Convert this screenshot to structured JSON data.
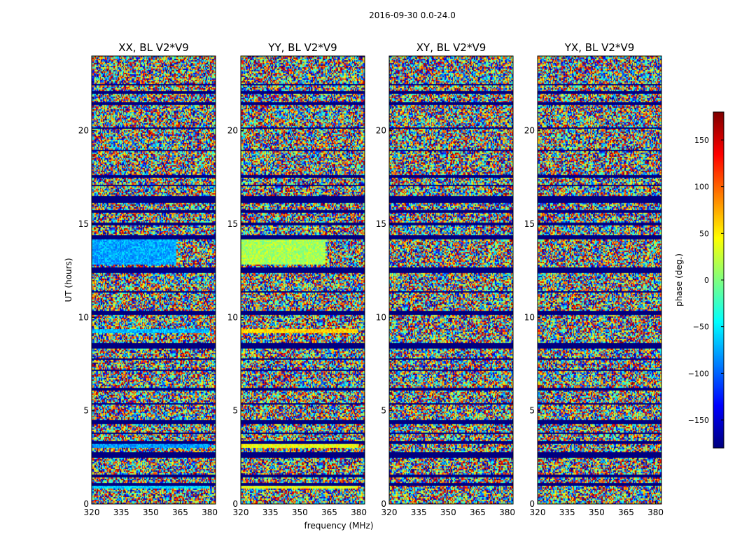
{
  "figure_title": "2016-09-30 0.0-24.0",
  "chart_data": {
    "type": "heatmap",
    "title": "2016-09-30 0.0-24.0",
    "xlabel": "frequency (MHz)",
    "ylabel": "UT (hours)",
    "xlim": [
      320,
      383
    ],
    "ylim": [
      0,
      24
    ],
    "xticks": [
      320,
      335,
      350,
      365,
      380
    ],
    "yticks": [
      0,
      5,
      10,
      15,
      20
    ],
    "panels": [
      {
        "title": "XX, BL V2*V9",
        "pol": "XX"
      },
      {
        "title": "YY, BL V2*V9",
        "pol": "YY"
      },
      {
        "title": "XY, BL V2*V9",
        "pol": "XY"
      },
      {
        "title": "YX, BL V2*V9",
        "pol": "YX"
      }
    ],
    "colorbar": {
      "label": "phase (deg.)",
      "colormap": "jet",
      "range": [
        -180,
        180
      ],
      "ticks": [
        -150,
        -100,
        -50,
        0,
        50,
        100,
        150
      ],
      "tick_labels": [
        "−150",
        "−100",
        "−50",
        "0",
        "50",
        "100",
        "150"
      ]
    },
    "flagged_ut_bands": [
      [
        0.95,
        1.1
      ],
      [
        1.45,
        1.6
      ],
      [
        2.45,
        2.75
      ],
      [
        3.25,
        3.35
      ],
      [
        3.75,
        3.85
      ],
      [
        4.3,
        4.5
      ],
      [
        5.3,
        5.4
      ],
      [
        6.1,
        6.2
      ],
      [
        7.1,
        7.2
      ],
      [
        7.7,
        7.8
      ],
      [
        8.3,
        8.6
      ],
      [
        10.15,
        10.35
      ],
      [
        11.3,
        11.4
      ],
      [
        12.4,
        12.7
      ],
      [
        14.2,
        14.4
      ],
      [
        14.95,
        15.1
      ],
      [
        15.6,
        15.75
      ],
      [
        16.1,
        16.5
      ],
      [
        17.0,
        17.1
      ],
      [
        17.5,
        17.6
      ],
      [
        18.9,
        19.0
      ],
      [
        20.1,
        20.2
      ],
      [
        21.4,
        21.5
      ],
      [
        22.0,
        22.1
      ],
      [
        22.4,
        22.5
      ]
    ],
    "coherent_features": [
      {
        "panel": "XX",
        "ut": [
          12.8,
          14.2
        ],
        "freq": [
          320,
          363
        ],
        "phase_deg": -75
      },
      {
        "panel": "YY",
        "ut": [
          12.8,
          14.2
        ],
        "freq": [
          320,
          363
        ],
        "phase_deg": 15
      },
      {
        "panel": "XX",
        "ut": [
          3.0,
          3.2
        ],
        "freq": [
          320,
          380
        ],
        "phase_deg": -80
      },
      {
        "panel": "YY",
        "ut": [
          3.0,
          3.2
        ],
        "freq": [
          320,
          380
        ],
        "phase_deg": 40
      },
      {
        "panel": "XX",
        "ut": [
          0.8,
          0.95
        ],
        "freq": [
          320,
          380
        ],
        "phase_deg": -60
      },
      {
        "panel": "YY",
        "ut": [
          0.8,
          0.95
        ],
        "freq": [
          320,
          380
        ],
        "phase_deg": 35
      },
      {
        "panel": "XX",
        "ut": [
          9.15,
          9.35
        ],
        "freq": [
          320,
          380
        ],
        "phase_deg": -70
      },
      {
        "panel": "YY",
        "ut": [
          9.15,
          9.35
        ],
        "freq": [
          320,
          380
        ],
        "phase_deg": 60
      }
    ]
  }
}
